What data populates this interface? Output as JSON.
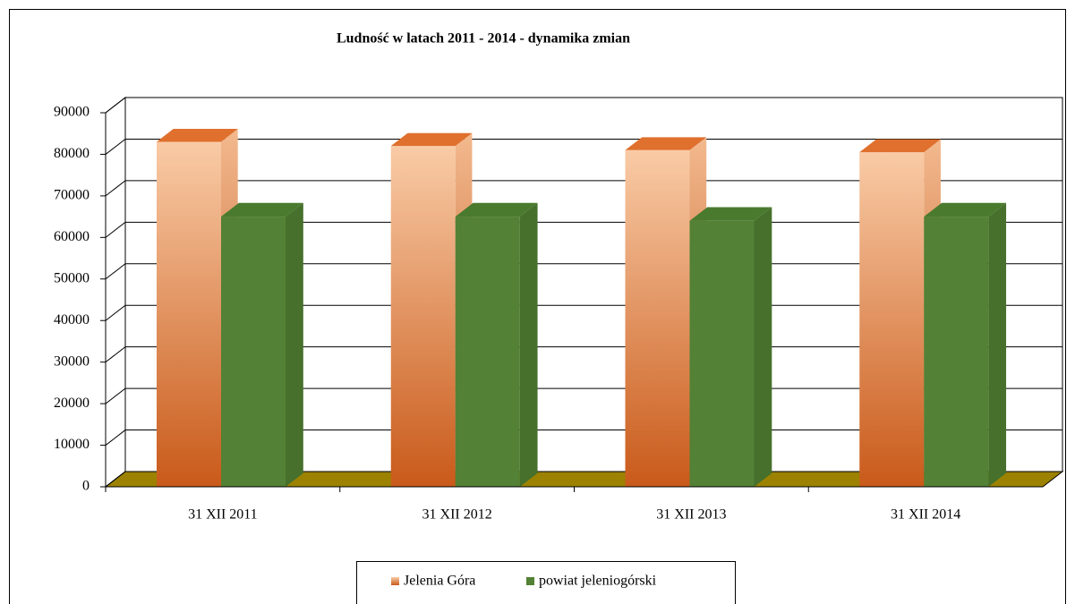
{
  "chart_data": {
    "type": "bar3d",
    "title": "Ludność w latach 2011 - 2014 - dynamika zmian",
    "categories": [
      "31 XII 2011",
      "31 XII 2012",
      "31 XII 2013",
      "31 XII 2014"
    ],
    "series": [
      {
        "name": "Jelenia Góra",
        "color": "#e8905a",
        "values": [
          83000,
          82000,
          81000,
          80500
        ]
      },
      {
        "name": "powiat jeleniogórski",
        "color": "#538135",
        "values": [
          65000,
          65000,
          64000,
          65000
        ]
      }
    ],
    "ylim": [
      0,
      90000
    ],
    "yticks": [
      0,
      10000,
      20000,
      30000,
      40000,
      50000,
      60000,
      70000,
      80000,
      90000
    ],
    "grid": true,
    "legend": "bottom"
  }
}
